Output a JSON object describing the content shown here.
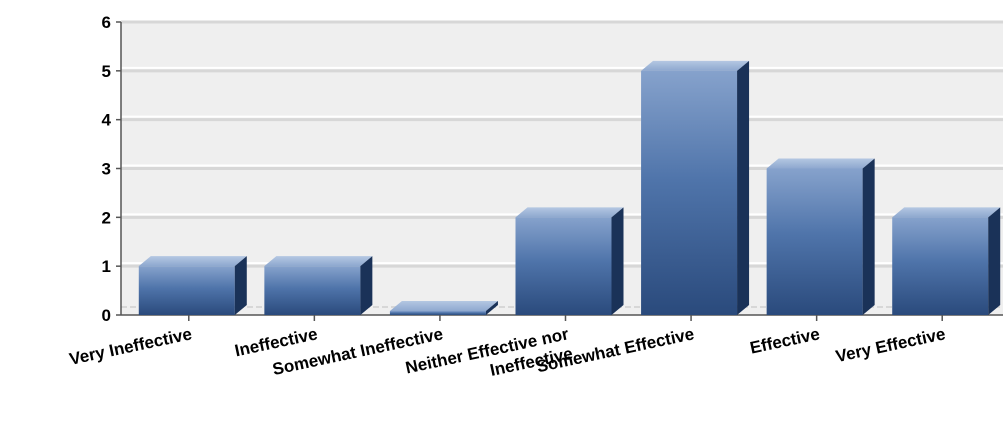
{
  "chart_data": {
    "type": "bar",
    "title": "",
    "xlabel": "",
    "ylabel": "",
    "categories": [
      "Very Ineffective",
      "Ineffective",
      "Somewhat Ineffective",
      "Neither Effective nor Ineffective",
      "Somewhat Effective",
      "Effective",
      "Very Effective"
    ],
    "values": [
      1,
      1,
      0,
      2,
      5,
      3,
      2
    ],
    "ylim": [
      0,
      6
    ],
    "yticks": [
      0,
      1,
      2,
      3,
      4,
      5,
      6
    ],
    "grid": true,
    "legend": "none",
    "style": "3d-bar"
  },
  "colors": {
    "bar_top": "#9ab2d2",
    "bar_front_light": "#7a98c6",
    "bar_front_dark": "#2c4e82",
    "bar_side": "#1a3258",
    "plot_bg": "#efefef",
    "grid_light": "#ffffff",
    "grid_dark": "#d7d7d7"
  }
}
